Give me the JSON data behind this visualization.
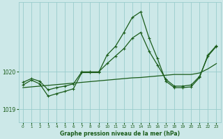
{
  "title": "Graphe pression niveau de la mer (hPa)",
  "bg_color": "#cce8e8",
  "grid_color": "#99cccc",
  "line_color_dark": "#1a5c1a",
  "xlim": [
    -0.5,
    23.5
  ],
  "ylim": [
    1018.65,
    1021.85
  ],
  "yticks": [
    1019,
    1020
  ],
  "xticks": [
    0,
    1,
    2,
    3,
    4,
    5,
    6,
    7,
    8,
    9,
    10,
    11,
    12,
    13,
    14,
    15,
    16,
    17,
    18,
    19,
    20,
    21,
    22,
    23
  ],
  "hours": [
    0,
    1,
    2,
    3,
    4,
    5,
    6,
    7,
    8,
    9,
    10,
    11,
    12,
    13,
    14,
    15,
    16,
    17,
    18,
    19,
    20,
    21,
    22,
    23
  ],
  "line_upper": [
    1019.65,
    1019.78,
    1019.68,
    1019.35,
    1019.42,
    1019.48,
    1019.55,
    1019.98,
    1019.98,
    1019.98,
    1020.45,
    1020.68,
    1021.05,
    1021.45,
    1021.6,
    1020.9,
    1020.35,
    1019.75,
    1019.58,
    1019.58,
    1019.6,
    1019.85,
    1020.45,
    1020.7
  ],
  "line_middle": [
    1019.72,
    1019.82,
    1019.75,
    1019.52,
    1019.58,
    1019.62,
    1019.68,
    1020.0,
    1020.0,
    1020.0,
    1020.22,
    1020.42,
    1020.62,
    1020.9,
    1021.05,
    1020.55,
    1020.18,
    1019.8,
    1019.62,
    1019.62,
    1019.65,
    1019.88,
    1020.42,
    1020.68
  ],
  "line_lower": [
    1019.58,
    1019.6,
    1019.62,
    1019.64,
    1019.66,
    1019.68,
    1019.7,
    1019.72,
    1019.74,
    1019.76,
    1019.78,
    1019.8,
    1019.82,
    1019.84,
    1019.85,
    1019.87,
    1019.89,
    1019.91,
    1019.93,
    1019.93,
    1019.93,
    1019.97,
    1020.08,
    1020.22
  ]
}
